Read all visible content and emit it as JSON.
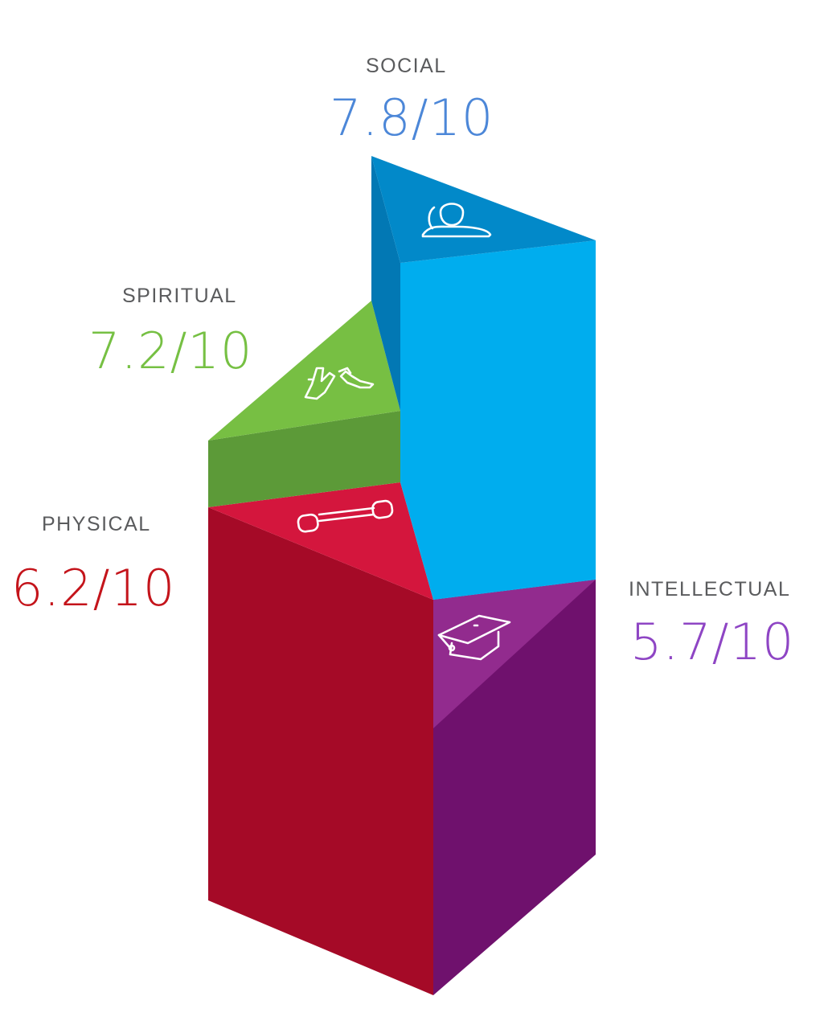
{
  "chart_data": {
    "type": "bar",
    "categories": [
      "SOCIAL",
      "SPIRITUAL",
      "PHYSICAL",
      "INTELLECTUAL"
    ],
    "values": [
      7.8,
      7.2,
      6.2,
      5.7
    ],
    "max": 10,
    "value_labels": [
      "7.8/10",
      "7.2/10",
      "6.2/10",
      "5.7/10"
    ],
    "colors": {
      "social": "#00adee",
      "spiritual": "#76c043",
      "physical": "#a50a27",
      "intellectual": "#6f116d",
      "social_text": "#4c87d8",
      "spiritual_text": "#76c043",
      "physical_text": "#c4141b",
      "intellectual_text": "#8e45c4"
    },
    "icons": [
      "person-icon",
      "praying-hands-icon",
      "dumbbell-icon",
      "graduation-cap-icon"
    ]
  }
}
